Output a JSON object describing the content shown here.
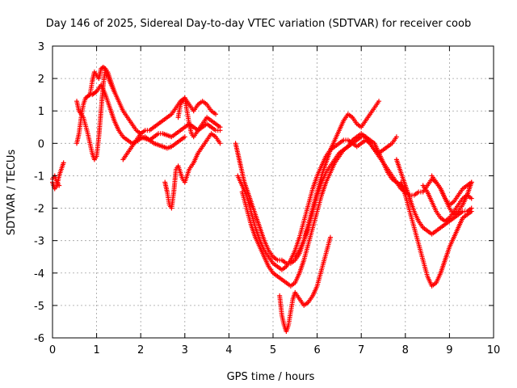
{
  "chart_data": {
    "type": "scatter",
    "title": "Day 146 of 2025, Sidereal Day-to-day VTEC variation (SDTVAR) for receiver coob",
    "xlabel": "GPS time / hours",
    "ylabel": "SDTVAR / TECUs",
    "xlim": [
      0,
      10
    ],
    "ylim": [
      -6,
      3
    ],
    "xticks": [
      "0",
      "1",
      "2",
      "3",
      "4",
      "5",
      "6",
      "7",
      "8",
      "9",
      "10"
    ],
    "yticks": [
      "3",
      "2",
      "1",
      "0",
      "-1",
      "-2",
      "-3",
      "-4",
      "-5",
      "-6"
    ],
    "grid": true,
    "marker": "plus",
    "color": "#ff0000",
    "series": [
      {
        "x": [
          0.0,
          0.05,
          0.1,
          0.15,
          0.2,
          0.25
        ],
        "y": [
          -1.2,
          -1.4,
          -1.3,
          -1.0,
          -0.8,
          -0.6
        ]
      },
      {
        "x": [
          0.0,
          0.05,
          0.1,
          0.15
        ],
        "y": [
          -1.1,
          -1.0,
          -1.2,
          -1.3
        ]
      },
      {
        "x": [
          0.55,
          0.6,
          0.65,
          0.7,
          0.75,
          0.8,
          0.85,
          0.9,
          0.95,
          1.0,
          1.1,
          1.2,
          1.3,
          1.4,
          1.5,
          1.6,
          1.7,
          1.8,
          1.9,
          2.0,
          2.1,
          2.2,
          2.3,
          2.4,
          2.5,
          2.6,
          2.7,
          2.8,
          2.9,
          3.0
        ],
        "y": [
          0.0,
          0.3,
          0.8,
          1.2,
          1.4,
          1.45,
          1.5,
          1.5,
          1.55,
          1.6,
          1.8,
          1.5,
          1.1,
          0.7,
          0.4,
          0.2,
          0.1,
          0.0,
          0.05,
          0.15,
          0.2,
          0.1,
          0.0,
          -0.05,
          -0.1,
          -0.15,
          -0.1,
          0.0,
          0.1,
          0.2
        ]
      },
      {
        "x": [
          0.55,
          0.6,
          0.7,
          0.8,
          0.9,
          0.95,
          1.0,
          1.05,
          1.1,
          1.15,
          1.2,
          1.25,
          1.3,
          1.4,
          1.5,
          1.6,
          1.7,
          1.8,
          1.9,
          2.0
        ],
        "y": [
          1.3,
          1.0,
          0.8,
          0.3,
          -0.3,
          -0.5,
          -0.4,
          0.2,
          1.0,
          1.8,
          2.3,
          2.1,
          1.9,
          1.6,
          1.3,
          1.0,
          0.8,
          0.6,
          0.4,
          0.3
        ]
      },
      {
        "x": [
          0.85,
          0.9,
          0.95,
          1.0,
          1.05,
          1.1,
          1.15,
          1.2,
          1.25,
          1.3,
          1.35,
          1.4
        ],
        "y": [
          1.5,
          1.9,
          2.2,
          2.1,
          2.0,
          2.3,
          2.35,
          2.3,
          2.2,
          2.0,
          1.8,
          1.6
        ]
      },
      {
        "x": [
          1.6,
          1.7,
          1.8,
          1.9,
          2.0,
          2.1,
          2.2,
          2.3,
          2.4,
          2.5,
          2.6,
          2.7,
          2.8,
          2.9,
          3.0,
          3.1,
          3.2,
          3.3,
          3.4,
          3.5,
          3.6,
          3.7
        ],
        "y": [
          -0.5,
          -0.3,
          -0.1,
          0.1,
          0.3,
          0.4,
          0.4,
          0.5,
          0.6,
          0.7,
          0.8,
          0.9,
          1.1,
          1.3,
          1.4,
          1.2,
          1.0,
          1.2,
          1.3,
          1.2,
          1.0,
          0.9
        ]
      },
      {
        "x": [
          2.0,
          2.1,
          2.2,
          2.3,
          2.4,
          2.5,
          2.6,
          2.7,
          2.8,
          2.9,
          3.0,
          3.1,
          3.2,
          3.3,
          3.4,
          3.5,
          3.6,
          3.7,
          3.8
        ],
        "y": [
          0.2,
          0.15,
          0.1,
          0.2,
          0.3,
          0.3,
          0.25,
          0.2,
          0.3,
          0.4,
          0.5,
          0.6,
          0.5,
          0.4,
          0.5,
          0.6,
          0.5,
          0.4,
          0.4
        ]
      },
      {
        "x": [
          2.55,
          2.6,
          2.65,
          2.7,
          2.75,
          2.8,
          2.85,
          2.9,
          2.95,
          3.0,
          3.1,
          3.2,
          3.3,
          3.4,
          3.5,
          3.6,
          3.7,
          3.8
        ],
        "y": [
          -1.2,
          -1.5,
          -1.9,
          -2.0,
          -1.5,
          -0.8,
          -0.7,
          -0.9,
          -1.1,
          -1.2,
          -0.8,
          -0.6,
          -0.3,
          -0.1,
          0.1,
          0.3,
          0.2,
          0.0
        ]
      },
      {
        "x": [
          2.85,
          2.9,
          2.95,
          3.0,
          3.05,
          3.1,
          3.15,
          3.2,
          3.3,
          3.4,
          3.5,
          3.6,
          3.7,
          3.8
        ],
        "y": [
          0.8,
          1.2,
          1.3,
          1.4,
          1.0,
          0.6,
          0.3,
          0.2,
          0.4,
          0.6,
          0.8,
          0.7,
          0.6,
          0.5
        ]
      },
      {
        "x": [
          4.15,
          4.2,
          4.25,
          4.3,
          4.35,
          4.4,
          4.5,
          4.6,
          4.7,
          4.8,
          4.9,
          5.0,
          5.1,
          5.2,
          5.3,
          5.4,
          5.5,
          5.6,
          5.7,
          5.8,
          5.9,
          6.0,
          6.1,
          6.2,
          6.3,
          6.4,
          6.5,
          6.6,
          6.7,
          6.8,
          6.9,
          7.0,
          7.1,
          7.2,
          7.3,
          7.4
        ],
        "y": [
          0.0,
          -0.3,
          -0.6,
          -0.9,
          -1.2,
          -1.4,
          -1.8,
          -2.2,
          -2.6,
          -3.0,
          -3.3,
          -3.5,
          -3.6,
          -3.6,
          -3.7,
          -3.7,
          -3.6,
          -3.4,
          -3.0,
          -2.5,
          -2.0,
          -1.5,
          -1.0,
          -0.6,
          -0.2,
          0.1,
          0.4,
          0.7,
          0.9,
          0.8,
          0.6,
          0.5,
          0.7,
          0.9,
          1.1,
          1.3
        ]
      },
      {
        "x": [
          4.2,
          4.3,
          4.4,
          4.5,
          4.6,
          4.7,
          4.8,
          4.9,
          5.0,
          5.1,
          5.2,
          5.3,
          5.4,
          5.5,
          5.6,
          5.7,
          5.8,
          5.9,
          6.0,
          6.1,
          6.2,
          6.3,
          6.4,
          6.5,
          6.6,
          6.7,
          6.8,
          6.9,
          7.0,
          7.1,
          7.2,
          7.3,
          7.4,
          7.5,
          7.6,
          7.7,
          7.8
        ],
        "y": [
          -1.0,
          -1.3,
          -1.6,
          -2.1,
          -2.6,
          -3.0,
          -3.3,
          -3.5,
          -3.7,
          -3.8,
          -3.9,
          -3.8,
          -3.6,
          -3.3,
          -2.9,
          -2.4,
          -1.9,
          -1.4,
          -1.0,
          -0.7,
          -0.4,
          -0.2,
          -0.1,
          0.0,
          0.1,
          0.1,
          0.0,
          -0.1,
          0.0,
          0.1,
          0.0,
          -0.2,
          -0.3,
          -0.2,
          -0.1,
          0.0,
          0.2
        ]
      },
      {
        "x": [
          4.3,
          4.4,
          4.5,
          4.6,
          4.7,
          4.8,
          4.9,
          5.0,
          5.1,
          5.2,
          5.3,
          5.4,
          5.5,
          5.6,
          5.7,
          5.8,
          5.9,
          6.0,
          6.1,
          6.2,
          6.3,
          6.4,
          6.5,
          6.6,
          6.7,
          6.8,
          6.9,
          7.0,
          7.1,
          7.2,
          7.3,
          7.4,
          7.5,
          7.6,
          7.7,
          7.8,
          7.9,
          8.0
        ],
        "y": [
          -1.5,
          -2.0,
          -2.5,
          -2.9,
          -3.2,
          -3.5,
          -3.8,
          -4.0,
          -4.1,
          -4.2,
          -4.3,
          -4.4,
          -4.3,
          -4.0,
          -3.6,
          -3.1,
          -2.6,
          -2.1,
          -1.6,
          -1.2,
          -0.9,
          -0.6,
          -0.4,
          -0.2,
          -0.1,
          0.0,
          0.1,
          0.2,
          0.2,
          0.1,
          0.0,
          -0.3,
          -0.6,
          -0.9,
          -1.1,
          -1.2,
          -1.3,
          -1.4
        ]
      },
      {
        "x": [
          5.15,
          5.2,
          5.25,
          5.3,
          5.35,
          5.4,
          5.45,
          5.5,
          5.6,
          5.7,
          5.8,
          5.9,
          6.0,
          6.1,
          6.2,
          6.3
        ],
        "y": [
          -4.7,
          -5.3,
          -5.6,
          -5.8,
          -5.6,
          -5.2,
          -4.8,
          -4.6,
          -4.8,
          -5.0,
          -4.9,
          -4.7,
          -4.4,
          -3.9,
          -3.4,
          -2.9
        ]
      },
      {
        "x": [
          5.5,
          5.6,
          5.7,
          5.8,
          5.9,
          6.0,
          6.1,
          6.2,
          6.3,
          6.4,
          6.5,
          6.6,
          6.7,
          6.8,
          6.9,
          7.0,
          7.1,
          7.2,
          7.3,
          7.4,
          7.5,
          7.6,
          7.7,
          7.8,
          7.9,
          8.0,
          8.1,
          8.2,
          8.3,
          8.4,
          8.5,
          8.6,
          8.7,
          8.8,
          8.9,
          9.0,
          9.1,
          9.2,
          9.3,
          9.4,
          9.5
        ],
        "y": [
          -3.5,
          -3.3,
          -3.0,
          -2.6,
          -2.1,
          -1.6,
          -1.2,
          -0.9,
          -0.7,
          -0.5,
          -0.3,
          -0.2,
          -0.1,
          0.1,
          0.2,
          0.3,
          0.2,
          0.0,
          -0.2,
          -0.4,
          -0.6,
          -0.8,
          -1.0,
          -1.2,
          -1.4,
          -1.5,
          -1.6,
          -1.6,
          -1.5,
          -1.5,
          -1.3,
          -1.1,
          -1.2,
          -1.4,
          -1.7,
          -1.9,
          -1.8,
          -1.6,
          -1.4,
          -1.3,
          -1.2
        ]
      },
      {
        "x": [
          7.9,
          8.0,
          8.1,
          8.2,
          8.3,
          8.4,
          8.5,
          8.6,
          8.7,
          8.8,
          8.9,
          9.0,
          9.1,
          9.2,
          9.3,
          9.4,
          9.5
        ],
        "y": [
          -1.2,
          -1.6,
          -2.1,
          -2.6,
          -3.1,
          -3.6,
          -4.1,
          -4.4,
          -4.3,
          -4.0,
          -3.6,
          -3.2,
          -2.9,
          -2.6,
          -2.3,
          -2.2,
          -2.1
        ]
      },
      {
        "x": [
          7.8,
          7.9,
          8.0,
          8.1,
          8.2,
          8.3,
          8.4,
          8.5,
          8.6,
          8.7,
          8.8,
          8.9,
          9.0,
          9.1,
          9.2,
          9.3,
          9.4,
          9.5
        ],
        "y": [
          -0.5,
          -0.9,
          -1.3,
          -1.7,
          -2.1,
          -2.4,
          -2.6,
          -2.7,
          -2.8,
          -2.7,
          -2.6,
          -2.5,
          -2.4,
          -2.3,
          -2.2,
          -2.1,
          -2.1,
          -2.0
        ]
      },
      {
        "x": [
          8.4,
          8.5,
          8.6,
          8.7,
          8.8,
          8.9,
          9.0,
          9.1,
          9.2,
          9.3,
          9.4,
          9.5
        ],
        "y": [
          -1.3,
          -1.5,
          -1.8,
          -2.1,
          -2.3,
          -2.4,
          -2.3,
          -2.1,
          -1.9,
          -1.7,
          -1.6,
          -1.7
        ]
      },
      {
        "x": [
          8.6,
          8.7,
          8.8,
          8.9,
          9.0,
          9.1,
          9.2,
          9.3,
          9.4,
          9.5
        ],
        "y": [
          -1.0,
          -1.2,
          -1.4,
          -1.7,
          -2.0,
          -2.2,
          -2.1,
          -1.9,
          -1.6,
          -1.2
        ]
      }
    ]
  }
}
